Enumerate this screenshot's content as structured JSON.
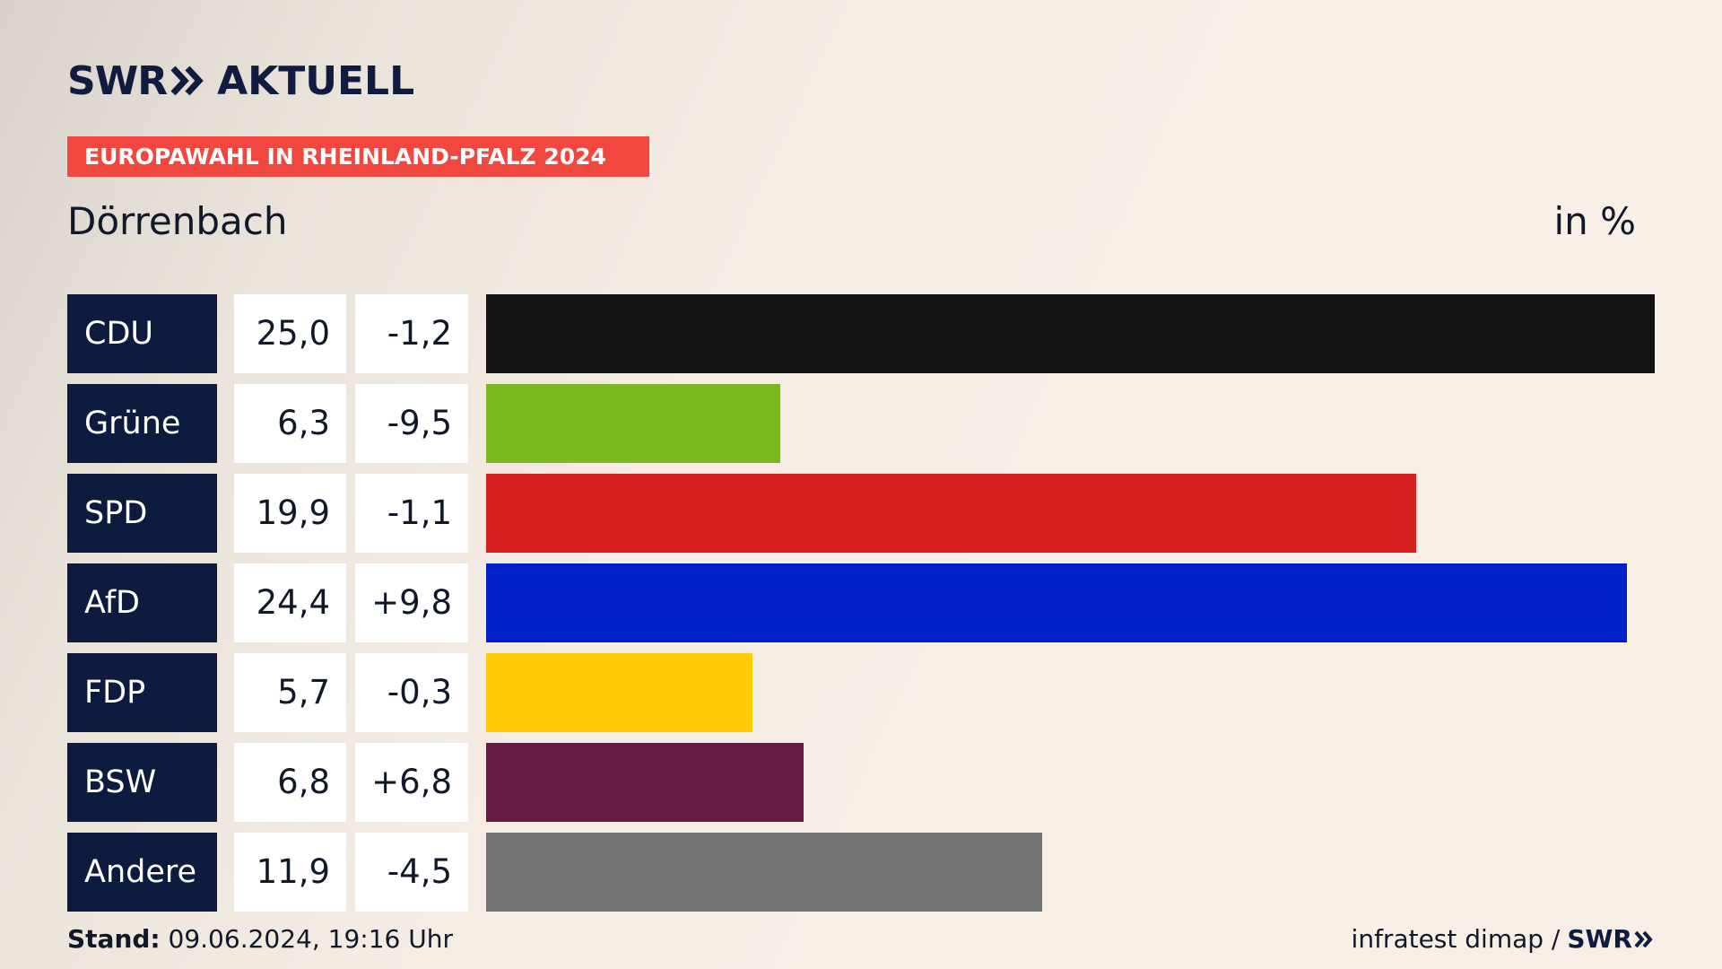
{
  "header": {
    "logo_brand": "SWR",
    "logo_section": "AKTUELL",
    "banner": "EUROPAWAHL IN RHEINLAND-PFALZ 2024",
    "location": "Dörrenbach",
    "unit": "in %"
  },
  "footer": {
    "stand_label": "Stand:",
    "stand_value": "09.06.2024, 19:16 Uhr",
    "source": "infratest dimap /",
    "source_brand": "SWR"
  },
  "colors": {
    "banner": "#f2473f",
    "label_bg": "#0d1b3e",
    "CDU": "#141414",
    "Grüne": "#7aba1f",
    "SPD": "#d71f1f",
    "AfD": "#0020c8",
    "FDP": "#ffcc07",
    "BSW": "#651b3f",
    "Andere": "#727374"
  },
  "chart_data": {
    "type": "bar",
    "orientation": "horizontal",
    "categories": [
      "CDU",
      "Grüne",
      "SPD",
      "AfD",
      "FDP",
      "BSW",
      "Andere"
    ],
    "values": [
      25.0,
      6.3,
      19.9,
      24.4,
      5.7,
      6.8,
      11.9
    ],
    "value_labels": [
      "25,0",
      "6,3",
      "19,9",
      "24,4",
      "5,7",
      "6,8",
      "11,9"
    ],
    "changes": [
      -1.2,
      -9.5,
      -1.1,
      9.8,
      -0.3,
      6.8,
      -4.5
    ],
    "change_labels": [
      "-1,2",
      "-9,5",
      "-1,1",
      "+9,8",
      "-0,3",
      "+6,8",
      "-4,5"
    ],
    "bar_colors": [
      "#141414",
      "#7aba1f",
      "#d71f1f",
      "#0020c8",
      "#ffcc07",
      "#651b3f",
      "#727374"
    ],
    "title": "Dörrenbach",
    "unit": "in %",
    "xlim": [
      0,
      25.0
    ]
  }
}
